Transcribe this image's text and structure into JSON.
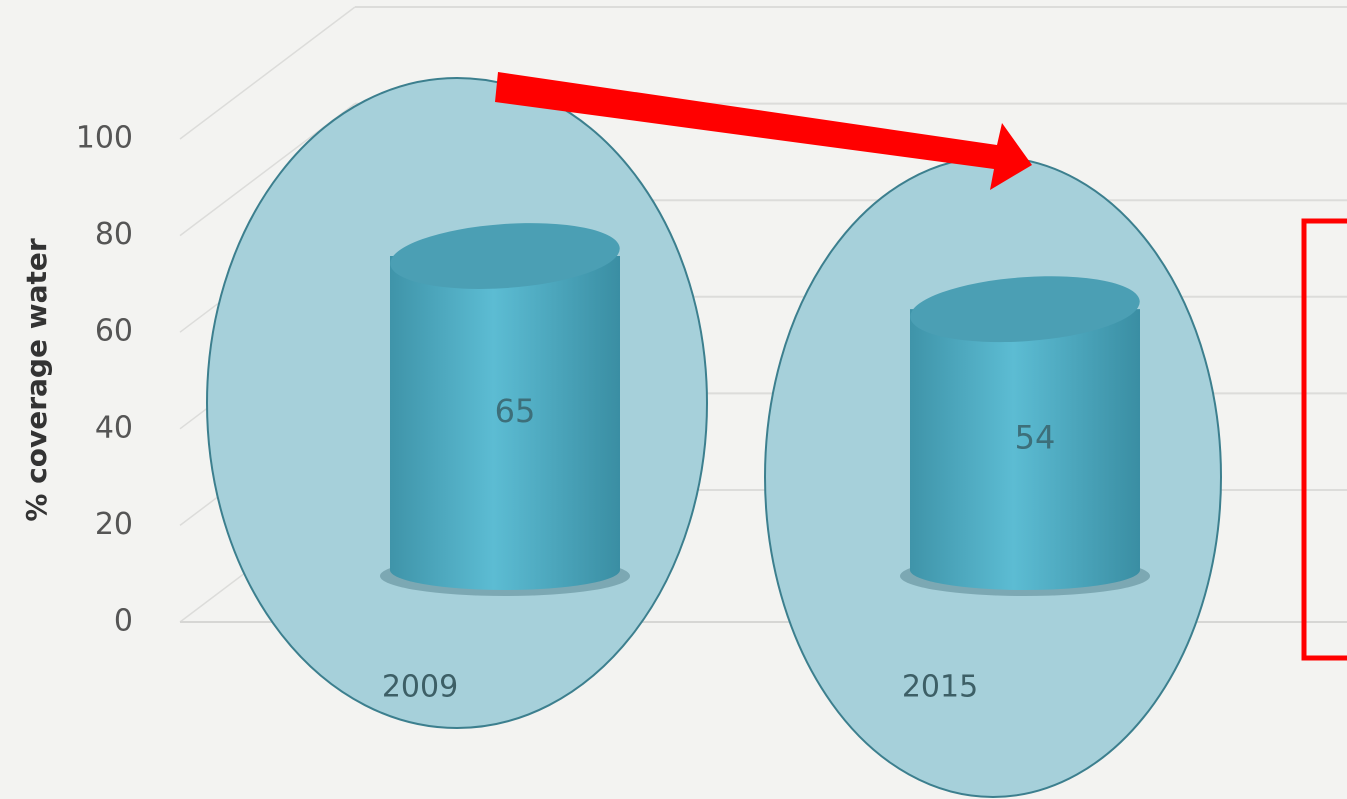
{
  "chart_data": {
    "type": "bar",
    "categories": [
      "2009",
      "2015"
    ],
    "values": [
      65,
      54
    ],
    "ylabel": "% coverage water",
    "ylim": [
      0,
      100
    ],
    "yticks": [
      0,
      20,
      40,
      60,
      80,
      100
    ],
    "grid": true,
    "color": "#4aaac2"
  }
}
